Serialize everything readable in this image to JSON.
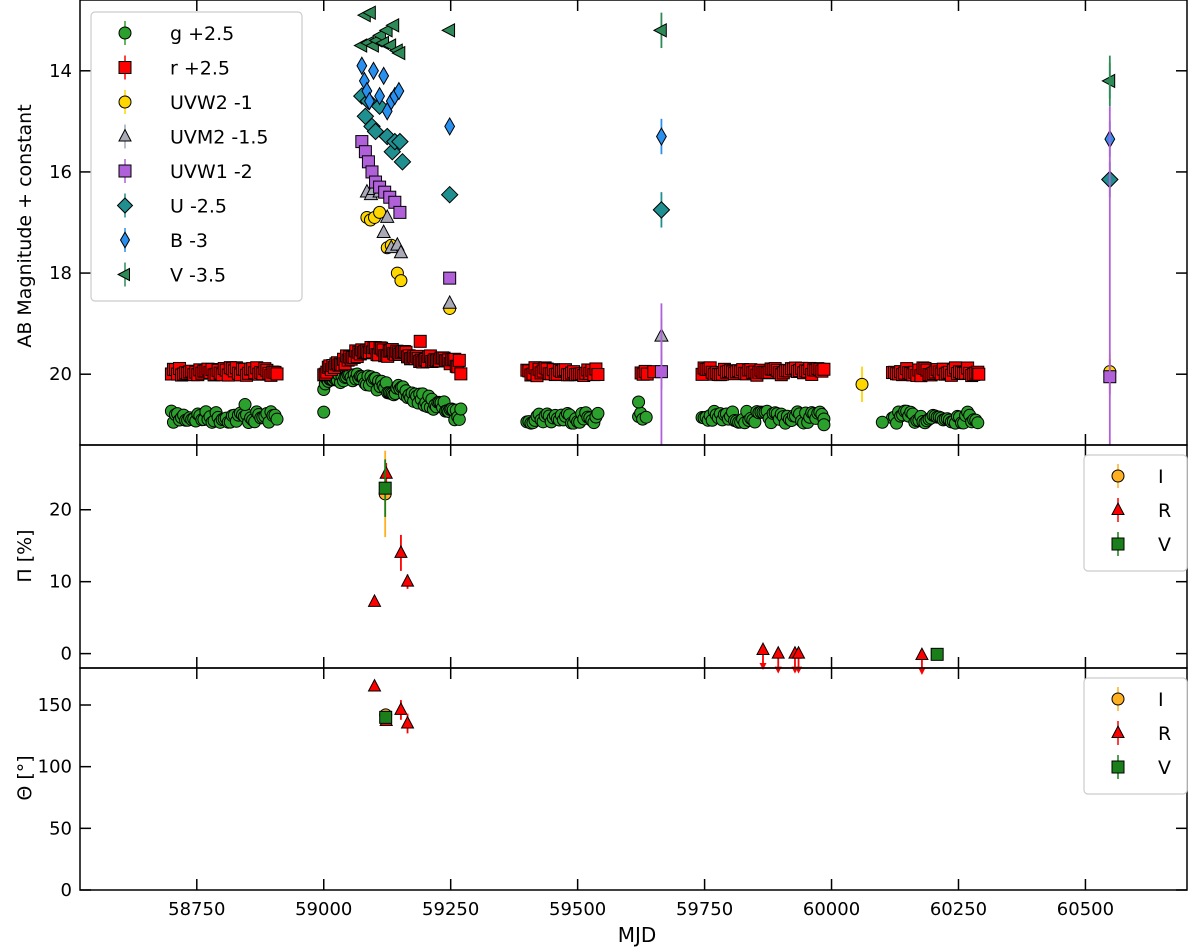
{
  "chart_data": [
    {
      "type": "scatter",
      "ylabel": "AB Magnitude + constant",
      "y_inverted": true,
      "ylim": [
        21.4,
        12.6
      ],
      "xlim": [
        58520,
        60700
      ],
      "xticks": [
        58750,
        59000,
        59250,
        59500,
        59750,
        60000,
        60250,
        60500
      ],
      "yticks": [
        14,
        16,
        18,
        20
      ],
      "ytick_labels": [
        "14",
        "16",
        "18",
        "20"
      ],
      "legend_position": "top-left",
      "series": [
        {
          "name": "g +2.5",
          "marker": "circle",
          "color": "#2ca02c"
        },
        {
          "name": "r +2.5",
          "marker": "square",
          "color": "#ff0000"
        },
        {
          "name": "UVW2 -1",
          "marker": "circle",
          "color": "#ffd700",
          "points": [
            [
              59085,
              16.9
            ],
            [
              59092,
              16.95
            ],
            [
              59100,
              16.9
            ],
            [
              59110,
              16.8
            ],
            [
              59125,
              17.5
            ],
            [
              59133,
              17.45
            ],
            [
              59145,
              18.0
            ],
            [
              59152,
              18.15
            ],
            [
              59248,
              18.7
            ],
            [
              60060,
              20.2
            ],
            [
              60548,
              19.95
            ]
          ]
        },
        {
          "name": "UVM2 -1.5",
          "marker": "triangle-up",
          "color": "#a9a9b8",
          "points": [
            [
              59085,
              16.4
            ],
            [
              59093,
              16.45
            ],
            [
              59098,
              16.35
            ],
            [
              59110,
              16.4
            ],
            [
              59118,
              17.2
            ],
            [
              59125,
              16.9
            ],
            [
              59133,
              17.5
            ],
            [
              59145,
              17.45
            ],
            [
              59152,
              17.6
            ],
            [
              59248,
              18.6
            ],
            [
              59665,
              19.25
            ]
          ]
        },
        {
          "name": "UVW1 -2",
          "marker": "square",
          "color": "#b060d8",
          "points": [
            [
              59075,
              15.4
            ],
            [
              59082,
              15.6
            ],
            [
              59088,
              15.8
            ],
            [
              59095,
              16.0
            ],
            [
              59102,
              16.2
            ],
            [
              59110,
              16.3
            ],
            [
              59120,
              16.4
            ],
            [
              59130,
              16.5
            ],
            [
              59140,
              16.6
            ],
            [
              59150,
              16.8
            ],
            [
              59248,
              18.1
            ],
            [
              59665,
              19.95
            ],
            [
              60548,
              20.05
            ]
          ]
        },
        {
          "name": "U -2.5",
          "marker": "diamond",
          "color": "#1f8f8f",
          "points": [
            [
              59075,
              14.5
            ],
            [
              59082,
              14.9
            ],
            [
              59088,
              14.6
            ],
            [
              59095,
              15.1
            ],
            [
              59102,
              15.2
            ],
            [
              59110,
              14.7
            ],
            [
              59125,
              15.3
            ],
            [
              59135,
              15.6
            ],
            [
              59140,
              15.4
            ],
            [
              59150,
              15.4
            ],
            [
              59155,
              15.8
            ],
            [
              59248,
              16.45
            ],
            [
              59665,
              16.75
            ],
            [
              60548,
              16.15
            ]
          ]
        },
        {
          "name": "B -3",
          "marker": "thin-diamond",
          "color": "#2a90f0",
          "points": [
            [
              59075,
              13.9
            ],
            [
              59080,
              14.2
            ],
            [
              59085,
              14.4
            ],
            [
              59090,
              14.6
            ],
            [
              59098,
              14.0
            ],
            [
              59110,
              14.5
            ],
            [
              59118,
              14.1
            ],
            [
              59125,
              14.8
            ],
            [
              59133,
              14.6
            ],
            [
              59140,
              14.5
            ],
            [
              59148,
              14.4
            ],
            [
              59248,
              15.1
            ],
            [
              59665,
              15.3
            ],
            [
              60548,
              15.35
            ]
          ]
        },
        {
          "name": "V -3.5",
          "marker": "triangle-left",
          "color": "#2e8b57",
          "points": [
            [
              59075,
              13.5
            ],
            [
              59082,
              12.9
            ],
            [
              59088,
              13.45
            ],
            [
              59092,
              12.85
            ],
            [
              59098,
              13.5
            ],
            [
              59105,
              13.4
            ],
            [
              59112,
              13.3
            ],
            [
              59118,
              13.45
            ],
            [
              59125,
              13.2
            ],
            [
              59132,
              13.5
            ],
            [
              59138,
              13.1
            ],
            [
              59145,
              13.6
            ],
            [
              59150,
              13.65
            ],
            [
              59248,
              13.2
            ],
            [
              59665,
              13.2
            ],
            [
              60548,
              14.2
            ]
          ]
        }
      ]
    },
    {
      "type": "scatter",
      "ylabel": "Π [%]",
      "ylim": [
        -2,
        29
      ],
      "yticks": [
        0,
        10,
        20
      ],
      "ytick_labels": [
        "0",
        "10",
        "20"
      ],
      "legend_position": "top-right",
      "series": [
        {
          "name": "I",
          "marker": "circle",
          "color": "#ffb020",
          "points": [
            [
              59121,
              22.2,
              6
            ]
          ]
        },
        {
          "name": "R",
          "marker": "triangle-up",
          "color": "#ff0000",
          "points": [
            [
              59100,
              7.2,
              0
            ],
            [
              59123,
              25,
              1.5
            ],
            [
              59152,
              14,
              2.5
            ],
            [
              59165,
              10,
              1
            ]
          ],
          "upper_limits": [
            [
              59865,
              0.5
            ],
            [
              59895,
              0
            ],
            [
              59928,
              0
            ],
            [
              59935,
              0
            ],
            [
              60178,
              -0.2
            ]
          ]
        },
        {
          "name": "V",
          "marker": "square",
          "color": "#1a7f1a",
          "points": [
            [
              59121,
              23,
              4
            ],
            [
              60208,
              -0.1,
              0.5
            ]
          ]
        }
      ]
    },
    {
      "type": "scatter",
      "xlabel": "MJD",
      "ylabel": "Θ [$^\\circ$]",
      "ylim": [
        0,
        180
      ],
      "yticks": [
        0,
        50,
        100,
        150
      ],
      "ytick_labels": [
        "0",
        "50",
        "100",
        "150"
      ],
      "xtick_labels": [
        "58750",
        "59000",
        "59250",
        "59500",
        "59750",
        "60000",
        "60250",
        "60500"
      ],
      "legend_position": "top-right",
      "series": [
        {
          "name": "I",
          "marker": "circle",
          "color": "#ffb020",
          "points": [
            [
              59122,
              142,
              3
            ]
          ]
        },
        {
          "name": "R",
          "marker": "triangle-up",
          "color": "#ff0000",
          "points": [
            [
              59100,
              165,
              0
            ],
            [
              59123,
              137,
              3
            ],
            [
              59152,
              146,
              8
            ],
            [
              59165,
              135,
              8
            ]
          ]
        },
        {
          "name": "V",
          "marker": "square",
          "color": "#1a7f1a",
          "points": [
            [
              59122,
              140,
              3
            ]
          ]
        }
      ]
    }
  ]
}
